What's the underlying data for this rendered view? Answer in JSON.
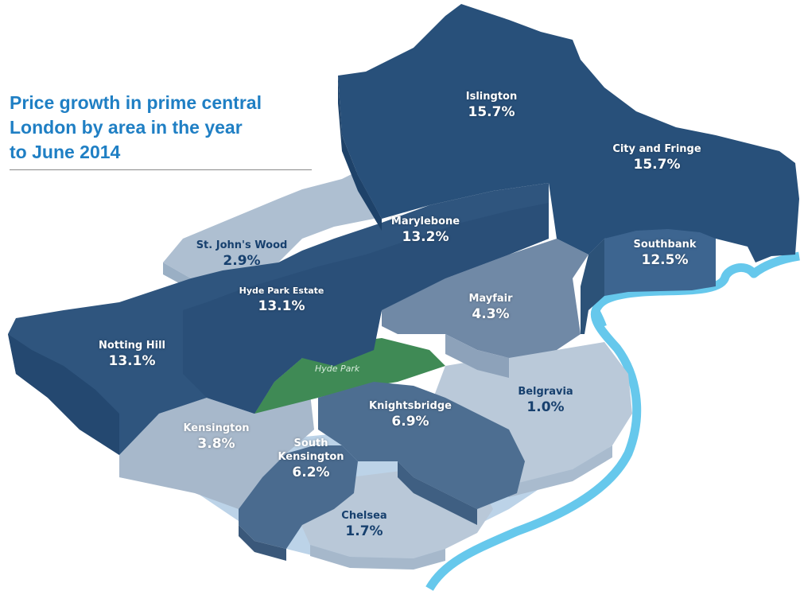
{
  "title": {
    "lines": [
      "Price growth in prime central",
      "London by area in the year",
      "to June 2014"
    ]
  },
  "colors": {
    "dark_area": "#2f5a83",
    "mid_area": "#6f8aa7",
    "light_area": "#b8c8d9",
    "park": "#3f8a55",
    "river": "#66c8ec",
    "title": "#1f7fc4"
  },
  "park": {
    "name": "Hyde Park"
  },
  "areas": [
    {
      "key": "islington",
      "name": "Islington",
      "growth": "15.7%"
    },
    {
      "key": "city_and_fringe",
      "name": "City and Fringe",
      "growth": "15.7%"
    },
    {
      "key": "southbank",
      "name": "Southbank",
      "growth": "12.5%"
    },
    {
      "key": "marylebone",
      "name": "Marylebone",
      "growth": "13.2%"
    },
    {
      "key": "st_johns_wood",
      "name": "St. John's Wood",
      "growth": "2.9%"
    },
    {
      "key": "hyde_park_estate",
      "name": "Hyde Park Estate",
      "growth": "13.1%"
    },
    {
      "key": "mayfair",
      "name": "Mayfair",
      "growth": "4.3%"
    },
    {
      "key": "notting_hill",
      "name": "Notting Hill",
      "growth": "13.1%"
    },
    {
      "key": "belgravia",
      "name": "Belgravia",
      "growth": "1.0%"
    },
    {
      "key": "knightsbridge",
      "name": "Knightsbridge",
      "growth": "6.9%"
    },
    {
      "key": "kensington",
      "name": "Kensington",
      "growth": "3.8%"
    },
    {
      "key": "south_kensington",
      "name_lines": [
        "South",
        "Kensington"
      ],
      "growth": "6.2%"
    },
    {
      "key": "chelsea",
      "name": "Chelsea",
      "growth": "1.7%"
    }
  ]
}
